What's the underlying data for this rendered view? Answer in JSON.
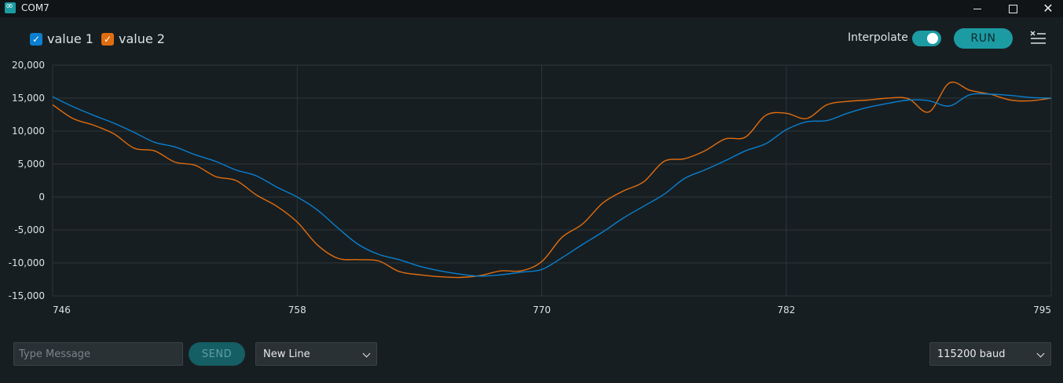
{
  "window": {
    "title": "COM7",
    "icon": "arduino-icon"
  },
  "legend": [
    {
      "label": "value 1",
      "checked": true,
      "color": "#0a7fcf"
    },
    {
      "label": "value 2",
      "checked": true,
      "color": "#e06d10"
    }
  ],
  "toolbar": {
    "interpolate_label": "Interpolate",
    "interpolate_on": true,
    "run_label": "RUN",
    "clear_icon": "clear-list-icon"
  },
  "footer": {
    "message_placeholder": "Type Message",
    "send_label": "SEND",
    "line_ending": "New Line",
    "baud_rate": "115200 baud"
  },
  "colors": {
    "background": "#171e21",
    "accent": "#1c9ba3",
    "series1": "#0a7fcf",
    "series2": "#e06d10"
  },
  "chart_data": {
    "type": "line",
    "title": "",
    "xlabel": "",
    "ylabel": "",
    "xlim": [
      746,
      795
    ],
    "ylim": [
      -15000,
      20000
    ],
    "grid": true,
    "legend": "top-left",
    "x_ticks": [
      746,
      758,
      770,
      782,
      795
    ],
    "y_ticks": [
      20000,
      15000,
      10000,
      5000,
      0,
      -5000,
      -10000,
      -15000
    ],
    "x_tick_labels": [
      "746",
      "758",
      "770",
      "782",
      "795"
    ],
    "y_tick_labels": [
      "20,000",
      "15,000",
      "10,000",
      "5,000",
      "0",
      "-5,000",
      "-10,000",
      "-15,000"
    ],
    "x": [
      746,
      747,
      748,
      749,
      750,
      751,
      752,
      753,
      754,
      755,
      756,
      757,
      758,
      759,
      760,
      761,
      762,
      763,
      764,
      765,
      766,
      767,
      768,
      769,
      770,
      771,
      772,
      773,
      774,
      775,
      776,
      777,
      778,
      779,
      780,
      781,
      782,
      783,
      784,
      785,
      786,
      787,
      788,
      789,
      790,
      791,
      792,
      793,
      794,
      795
    ],
    "series": [
      {
        "name": "value 1",
        "color": "#0a7fcf",
        "values": [
          15200,
          13700,
          12400,
          11200,
          9800,
          8300,
          7600,
          6400,
          5400,
          4100,
          3200,
          1500,
          0,
          -2000,
          -4700,
          -7200,
          -8700,
          -9500,
          -10500,
          -11200,
          -11700,
          -12000,
          -11800,
          -11400,
          -11000,
          -9200,
          -7200,
          -5300,
          -3200,
          -1400,
          400,
          2800,
          4100,
          5500,
          7000,
          8100,
          10200,
          11400,
          11600,
          12700,
          13600,
          14200,
          14700,
          14600,
          13800,
          15500,
          15600,
          15400,
          15100,
          15000
        ]
      },
      {
        "name": "value 2",
        "color": "#e06d10",
        "values": [
          14000,
          11900,
          10900,
          9600,
          7400,
          7000,
          5300,
          4800,
          3100,
          2500,
          300,
          -1400,
          -3800,
          -7300,
          -9300,
          -9500,
          -9700,
          -11300,
          -11800,
          -12100,
          -12200,
          -11900,
          -11200,
          -11200,
          -9800,
          -6100,
          -4100,
          -900,
          900,
          2300,
          5400,
          5800,
          7000,
          8800,
          9100,
          12400,
          12700,
          11900,
          14000,
          14500,
          14700,
          15000,
          14900,
          12900,
          17300,
          16200,
          15600,
          14700,
          14600,
          15000
        ]
      }
    ]
  }
}
